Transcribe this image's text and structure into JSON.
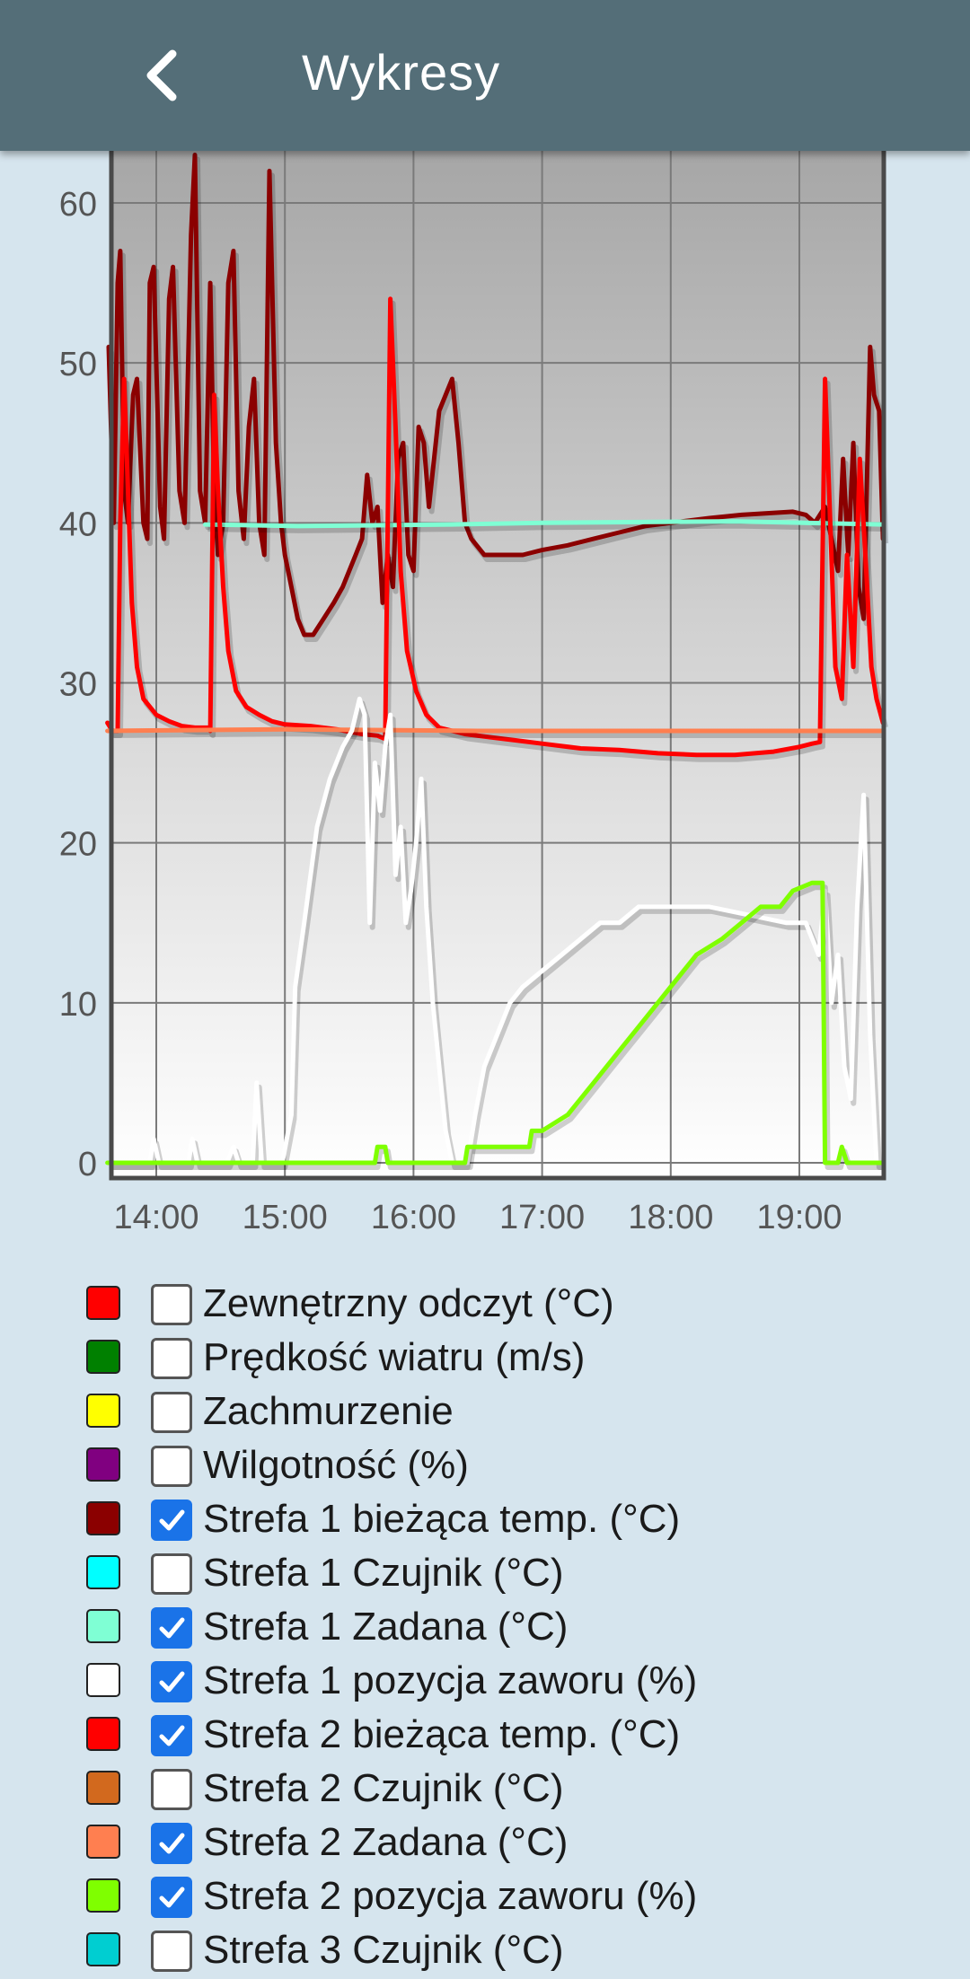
{
  "header": {
    "title": "Wykresy",
    "back_icon": "chevron-left-icon"
  },
  "chart_data": {
    "type": "line",
    "title": "",
    "xlabel": "",
    "ylabel": "",
    "x_ticks": [
      "14:00",
      "15:00",
      "16:00",
      "17:00",
      "18:00",
      "19:00"
    ],
    "y_ticks": [
      0,
      10,
      20,
      30,
      40,
      50,
      60
    ],
    "xlim": [
      13.62,
      19.65
    ],
    "ylim": [
      -1,
      63
    ],
    "grid": true,
    "series": [
      {
        "name": "Strefa 1 bieżąca temp. (°C)",
        "color": "#8b0000",
        "points": [
          [
            13.63,
            51
          ],
          [
            13.67,
            40
          ],
          [
            13.7,
            55
          ],
          [
            13.72,
            57
          ],
          [
            13.75,
            42
          ],
          [
            13.78,
            40
          ],
          [
            13.82,
            48
          ],
          [
            13.85,
            49
          ],
          [
            13.9,
            40
          ],
          [
            13.93,
            39
          ],
          [
            13.95,
            55
          ],
          [
            13.98,
            56
          ],
          [
            14.03,
            41
          ],
          [
            14.06,
            39
          ],
          [
            14.1,
            54
          ],
          [
            14.13,
            56
          ],
          [
            14.18,
            42
          ],
          [
            14.22,
            40
          ],
          [
            14.27,
            58
          ],
          [
            14.3,
            63
          ],
          [
            14.34,
            42
          ],
          [
            14.38,
            40
          ],
          [
            14.42,
            55
          ],
          [
            14.45,
            42
          ],
          [
            14.48,
            38
          ],
          [
            14.52,
            40
          ],
          [
            14.56,
            55
          ],
          [
            14.6,
            57
          ],
          [
            14.64,
            42
          ],
          [
            14.68,
            39
          ],
          [
            14.72,
            46
          ],
          [
            14.76,
            49
          ],
          [
            14.8,
            40
          ],
          [
            14.84,
            38
          ],
          [
            14.88,
            62
          ],
          [
            14.93,
            45
          ],
          [
            14.97,
            40
          ],
          [
            15.0,
            38
          ],
          [
            15.05,
            36
          ],
          [
            15.1,
            34
          ],
          [
            15.15,
            33
          ],
          [
            15.22,
            33
          ],
          [
            15.3,
            34
          ],
          [
            15.38,
            35
          ],
          [
            15.45,
            36
          ],
          [
            15.5,
            37
          ],
          [
            15.55,
            38
          ],
          [
            15.6,
            39
          ],
          [
            15.64,
            43
          ],
          [
            15.68,
            40
          ],
          [
            15.72,
            41
          ],
          [
            15.76,
            35
          ],
          [
            15.8,
            38
          ],
          [
            15.84,
            36
          ],
          [
            15.88,
            44
          ],
          [
            15.92,
            45
          ],
          [
            15.96,
            38
          ],
          [
            16.0,
            37
          ],
          [
            16.04,
            46
          ],
          [
            16.08,
            45
          ],
          [
            16.12,
            41
          ],
          [
            16.16,
            44
          ],
          [
            16.2,
            47
          ],
          [
            16.25,
            48
          ],
          [
            16.3,
            49
          ],
          [
            16.35,
            45
          ],
          [
            16.4,
            40
          ],
          [
            16.45,
            39
          ],
          [
            16.55,
            38
          ],
          [
            16.7,
            38
          ],
          [
            16.85,
            38
          ],
          [
            17.0,
            38.3
          ],
          [
            17.2,
            38.6
          ],
          [
            17.4,
            39
          ],
          [
            17.6,
            39.4
          ],
          [
            17.8,
            39.8
          ],
          [
            18.0,
            40
          ],
          [
            18.3,
            40.3
          ],
          [
            18.55,
            40.5
          ],
          [
            18.75,
            40.6
          ],
          [
            18.95,
            40.7
          ],
          [
            19.05,
            40.5
          ],
          [
            19.12,
            40
          ],
          [
            19.2,
            41
          ],
          [
            19.25,
            39
          ],
          [
            19.3,
            37
          ],
          [
            19.34,
            44
          ],
          [
            19.38,
            38
          ],
          [
            19.42,
            45
          ],
          [
            19.46,
            36
          ],
          [
            19.5,
            34
          ],
          [
            19.55,
            51
          ],
          [
            19.58,
            48
          ],
          [
            19.62,
            47
          ],
          [
            19.65,
            39
          ]
        ]
      },
      {
        "name": "Strefa 1 Zadana (°C)",
        "color": "#7fffd4",
        "points": [
          [
            14.38,
            39.9
          ],
          [
            15.1,
            39.8
          ],
          [
            16.3,
            39.9
          ],
          [
            17.0,
            40.0
          ],
          [
            18.5,
            40.1
          ],
          [
            19.65,
            39.9
          ]
        ]
      },
      {
        "name": "Strefa 2 bieżąca temp. (°C)",
        "color": "#ff0000",
        "points": [
          [
            13.62,
            27.5
          ],
          [
            13.66,
            27
          ],
          [
            13.7,
            27
          ],
          [
            13.72,
            40
          ],
          [
            13.75,
            49
          ],
          [
            13.78,
            42
          ],
          [
            13.81,
            35
          ],
          [
            13.85,
            31
          ],
          [
            13.9,
            29
          ],
          [
            14.0,
            28
          ],
          [
            14.1,
            27.6
          ],
          [
            14.2,
            27.3
          ],
          [
            14.3,
            27.2
          ],
          [
            14.4,
            27.2
          ],
          [
            14.42,
            27
          ],
          [
            14.45,
            48
          ],
          [
            14.48,
            42
          ],
          [
            14.52,
            36
          ],
          [
            14.56,
            32
          ],
          [
            14.62,
            29.5
          ],
          [
            14.7,
            28.5
          ],
          [
            14.8,
            28
          ],
          [
            14.9,
            27.6
          ],
          [
            15.0,
            27.4
          ],
          [
            15.2,
            27.3
          ],
          [
            15.4,
            27.1
          ],
          [
            15.6,
            26.8
          ],
          [
            15.72,
            26.7
          ],
          [
            15.78,
            26.5
          ],
          [
            15.82,
            54
          ],
          [
            15.86,
            46
          ],
          [
            15.9,
            37
          ],
          [
            15.95,
            32
          ],
          [
            16.02,
            29.5
          ],
          [
            16.1,
            28
          ],
          [
            16.2,
            27.2
          ],
          [
            16.4,
            26.8
          ],
          [
            16.6,
            26.6
          ],
          [
            16.8,
            26.4
          ],
          [
            17.0,
            26.2
          ],
          [
            17.3,
            25.9
          ],
          [
            17.6,
            25.8
          ],
          [
            17.9,
            25.6
          ],
          [
            18.2,
            25.5
          ],
          [
            18.5,
            25.5
          ],
          [
            18.8,
            25.7
          ],
          [
            19.0,
            26
          ],
          [
            19.1,
            26.2
          ],
          [
            19.16,
            26.3
          ],
          [
            19.2,
            49
          ],
          [
            19.24,
            40
          ],
          [
            19.28,
            31
          ],
          [
            19.33,
            29
          ],
          [
            19.37,
            38
          ],
          [
            19.42,
            31
          ],
          [
            19.47,
            44
          ],
          [
            19.52,
            37
          ],
          [
            19.56,
            31
          ],
          [
            19.6,
            29
          ],
          [
            19.65,
            27.5
          ]
        ]
      },
      {
        "name": "Strefa 2 Zadana (°C)",
        "color": "#ff7f50",
        "points": [
          [
            13.62,
            27
          ],
          [
            15.0,
            27.1
          ],
          [
            16.5,
            27
          ],
          [
            18.0,
            27
          ],
          [
            19.65,
            27
          ]
        ]
      },
      {
        "name": "Strefa 1 pozycja zaworu (%)",
        "color": "#ffffff",
        "points": [
          [
            13.62,
            0
          ],
          [
            13.95,
            0
          ],
          [
            13.98,
            1.5
          ],
          [
            14.02,
            0
          ],
          [
            14.25,
            0
          ],
          [
            14.28,
            1.5
          ],
          [
            14.32,
            0
          ],
          [
            14.55,
            0
          ],
          [
            14.6,
            1
          ],
          [
            14.64,
            0
          ],
          [
            14.75,
            0
          ],
          [
            14.78,
            5
          ],
          [
            14.82,
            0
          ],
          [
            14.98,
            0
          ],
          [
            15.05,
            3
          ],
          [
            15.08,
            11
          ],
          [
            15.15,
            15
          ],
          [
            15.25,
            21
          ],
          [
            15.35,
            24
          ],
          [
            15.45,
            26
          ],
          [
            15.52,
            27
          ],
          [
            15.58,
            29
          ],
          [
            15.62,
            28
          ],
          [
            15.66,
            15
          ],
          [
            15.7,
            25
          ],
          [
            15.74,
            22
          ],
          [
            15.78,
            26
          ],
          [
            15.82,
            28
          ],
          [
            15.86,
            18
          ],
          [
            15.9,
            21
          ],
          [
            15.94,
            15
          ],
          [
            15.98,
            17
          ],
          [
            16.02,
            20
          ],
          [
            16.06,
            24
          ],
          [
            16.1,
            16
          ],
          [
            16.15,
            10
          ],
          [
            16.2,
            6
          ],
          [
            16.25,
            2
          ],
          [
            16.3,
            0
          ],
          [
            16.35,
            0
          ],
          [
            16.42,
            0
          ],
          [
            16.48,
            3
          ],
          [
            16.55,
            6
          ],
          [
            16.65,
            8
          ],
          [
            16.75,
            10
          ],
          [
            16.85,
            11
          ],
          [
            17.0,
            12
          ],
          [
            17.15,
            13
          ],
          [
            17.3,
            14
          ],
          [
            17.45,
            15
          ],
          [
            17.6,
            15
          ],
          [
            17.75,
            16
          ],
          [
            18.0,
            16
          ],
          [
            18.3,
            16
          ],
          [
            18.6,
            15.5
          ],
          [
            18.9,
            15
          ],
          [
            19.05,
            15
          ],
          [
            19.1,
            14
          ],
          [
            19.15,
            13
          ],
          [
            19.2,
            17
          ],
          [
            19.25,
            10
          ],
          [
            19.3,
            13
          ],
          [
            19.35,
            6
          ],
          [
            19.4,
            4
          ],
          [
            19.45,
            16
          ],
          [
            19.5,
            23
          ],
          [
            19.55,
            8
          ],
          [
            19.6,
            0
          ],
          [
            19.65,
            0
          ]
        ]
      },
      {
        "name": "Strefa 2 pozycja zaworu (%)",
        "color": "#7fff00",
        "points": [
          [
            13.62,
            0
          ],
          [
            15.7,
            0
          ],
          [
            15.72,
            1
          ],
          [
            15.78,
            1
          ],
          [
            15.8,
            0
          ],
          [
            16.4,
            0
          ],
          [
            16.42,
            1
          ],
          [
            16.9,
            1
          ],
          [
            16.92,
            2
          ],
          [
            17.0,
            2
          ],
          [
            17.2,
            3
          ],
          [
            17.4,
            5
          ],
          [
            17.6,
            7
          ],
          [
            17.8,
            9
          ],
          [
            18.0,
            11
          ],
          [
            18.2,
            13
          ],
          [
            18.4,
            14
          ],
          [
            18.55,
            15
          ],
          [
            18.7,
            16
          ],
          [
            18.85,
            16
          ],
          [
            18.95,
            17
          ],
          [
            19.1,
            17.5
          ],
          [
            19.18,
            17.5
          ],
          [
            19.2,
            0
          ],
          [
            19.3,
            0
          ],
          [
            19.33,
            1
          ],
          [
            19.37,
            0
          ],
          [
            19.65,
            0
          ]
        ]
      }
    ]
  },
  "legend": [
    {
      "label": "Zewnętrzny odczyt (°C)",
      "color": "#ff0000",
      "checked": false
    },
    {
      "label": "Prędkość wiatru (m/s)",
      "color": "#008000",
      "checked": false
    },
    {
      "label": "Zachmurzenie",
      "color": "#ffff00",
      "checked": false
    },
    {
      "label": "Wilgotność (%)",
      "color": "#800080",
      "checked": false
    },
    {
      "label": "Strefa 1 bieżąca temp. (°C)",
      "color": "#8b0000",
      "checked": true
    },
    {
      "label": "Strefa 1 Czujnik (°C)",
      "color": "#00ffff",
      "checked": false
    },
    {
      "label": "Strefa 1 Zadana (°C)",
      "color": "#7fffd4",
      "checked": true
    },
    {
      "label": "Strefa 1 pozycja zaworu (%)",
      "color": "#ffffff",
      "checked": true
    },
    {
      "label": "Strefa 2 bieżąca temp. (°C)",
      "color": "#ff0000",
      "checked": true
    },
    {
      "label": "Strefa 2 Czujnik (°C)",
      "color": "#d2691e",
      "checked": false
    },
    {
      "label": "Strefa 2 Zadana (°C)",
      "color": "#ff7f50",
      "checked": true
    },
    {
      "label": "Strefa 2 pozycja zaworu (%)",
      "color": "#7fff00",
      "checked": true
    },
    {
      "label": "Strefa 3 Czujnik (°C)",
      "color": "#00ced1",
      "checked": false
    }
  ]
}
